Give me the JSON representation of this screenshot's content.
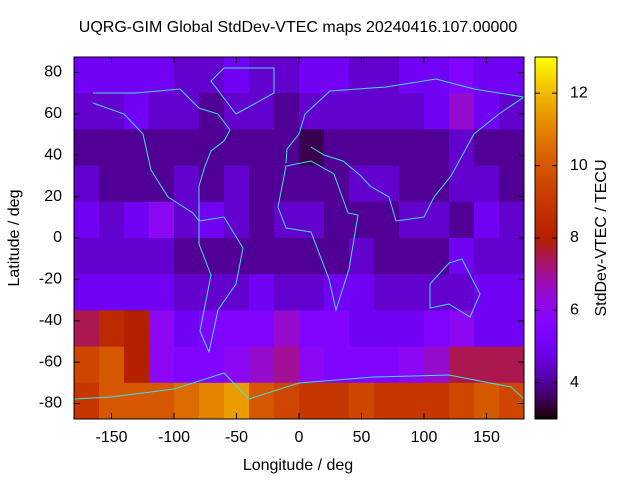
{
  "chart_data": {
    "type": "heatmap",
    "title": "UQRG-GIM Global StdDev-VTEC maps 20240416.107.00000",
    "x_label": "Longitude / deg",
    "y_label": "Latitude / deg",
    "colorbar_label": "StdDev-VTEC / TECU",
    "xlim": [
      -180,
      180
    ],
    "ylim": [
      -87.5,
      87.5
    ],
    "zlim": [
      3,
      13
    ],
    "xticks": [
      -150,
      -100,
      -50,
      0,
      50,
      100,
      150
    ],
    "yticks": [
      80,
      60,
      40,
      20,
      0,
      -20,
      -40,
      -60,
      -80
    ],
    "zticks": [
      4,
      6,
      8,
      10,
      12
    ],
    "colormap": "gnuplot",
    "x_bins": [
      -180,
      -160,
      -140,
      -120,
      -100,
      -80,
      -60,
      -40,
      -20,
      0,
      20,
      40,
      60,
      80,
      100,
      120,
      140,
      160,
      180
    ],
    "y_bins": [
      87.5,
      70,
      52.5,
      35,
      17.5,
      0,
      -17.5,
      -35,
      -52.5,
      -70,
      -87.5
    ],
    "z": [
      [
        5,
        5,
        5,
        5,
        4.5,
        4.5,
        5,
        4.5,
        4.5,
        5,
        5,
        4.5,
        4.5,
        5,
        5,
        5.5,
        5,
        5
      ],
      [
        4.5,
        4.5,
        5,
        4.5,
        4.5,
        4,
        4.5,
        4.5,
        4,
        4.5,
        4.5,
        4.5,
        4.5,
        4.5,
        5,
        6.5,
        5,
        4.5
      ],
      [
        4,
        4,
        4,
        4,
        4,
        4,
        4,
        4,
        4,
        3.5,
        4,
        4,
        4,
        4,
        4,
        4.5,
        4,
        4
      ],
      [
        4.5,
        4,
        4,
        4,
        4.5,
        4,
        4.5,
        4,
        4,
        4,
        4,
        4.5,
        4.5,
        4,
        4,
        4.5,
        4.5,
        4
      ],
      [
        5,
        4.5,
        5,
        6,
        4.5,
        5,
        4.5,
        4,
        4.5,
        4.5,
        4,
        4,
        4,
        4.5,
        4.5,
        4,
        5,
        4.5
      ],
      [
        4.5,
        4.5,
        4.5,
        4.5,
        4,
        4,
        4,
        4,
        4,
        4,
        4,
        4.5,
        4,
        4,
        4,
        5,
        4.5,
        4.5
      ],
      [
        5,
        5,
        5,
        5,
        4.5,
        4.5,
        4.5,
        5,
        4.5,
        4.5,
        5,
        5,
        4.5,
        4.5,
        4.5,
        4.5,
        5,
        5
      ],
      [
        7.5,
        8.5,
        8,
        6,
        5,
        5.5,
        5.5,
        5.5,
        6.5,
        5.5,
        5.5,
        5,
        5,
        5,
        5.5,
        6,
        5,
        5
      ],
      [
        9.5,
        10,
        8,
        6,
        5.5,
        5.5,
        6,
        6.5,
        7,
        6,
        5.5,
        5.5,
        5.5,
        6,
        6.5,
        7.5,
        7.5,
        7.5
      ],
      [
        9,
        10,
        10,
        10,
        10.5,
        11,
        11.5,
        10,
        9.5,
        9,
        9,
        9.5,
        9,
        9,
        9,
        9.5,
        10,
        9.5
      ]
    ]
  }
}
